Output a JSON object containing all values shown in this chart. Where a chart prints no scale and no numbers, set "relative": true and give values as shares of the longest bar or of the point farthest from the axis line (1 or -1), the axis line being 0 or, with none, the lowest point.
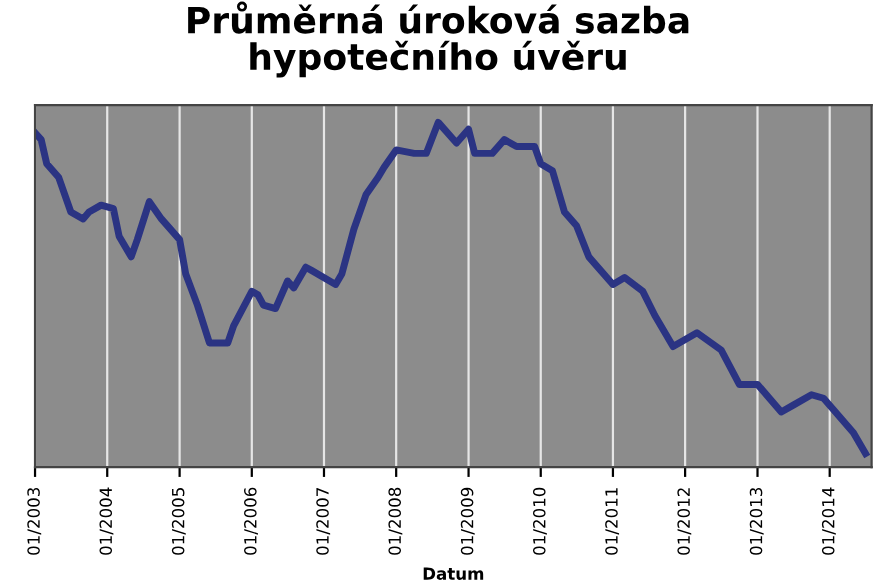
{
  "chart_data": {
    "type": "line",
    "title": "Průměrná úroková sazba\nhypotečního úvěru",
    "xlabel": "Datum",
    "relative": true,
    "grid": "x",
    "legend": false,
    "marker": "none",
    "line_style": "solid",
    "xlim": [
      "2003-01",
      "2014-08"
    ],
    "xticks": [
      {
        "value": "2003-01",
        "label": "01/2003"
      },
      {
        "value": "2004-01",
        "label": "01/2004"
      },
      {
        "value": "2005-01",
        "label": "01/2005"
      },
      {
        "value": "2006-01",
        "label": "01/2006"
      },
      {
        "value": "2007-01",
        "label": "01/2007"
      },
      {
        "value": "2008-01",
        "label": "01/2008"
      },
      {
        "value": "2009-01",
        "label": "01/2009"
      },
      {
        "value": "2010-01",
        "label": "01/2010"
      },
      {
        "value": "2011-01",
        "label": "01/2011"
      },
      {
        "value": "2012-01",
        "label": "01/2012"
      },
      {
        "value": "2013-01",
        "label": "01/2013"
      },
      {
        "value": "2014-01",
        "label": "01/2014"
      }
    ],
    "x": [
      "2003-01",
      "2003-02",
      "2003-03",
      "2003-05",
      "2003-07",
      "2003-09",
      "2003-10",
      "2003-12",
      "2004-02",
      "2004-03",
      "2004-05",
      "2004-06",
      "2004-08",
      "2004-10",
      "2005-01",
      "2005-02",
      "2005-04",
      "2005-06",
      "2005-09",
      "2005-10",
      "2006-01",
      "2006-02",
      "2006-03",
      "2006-05",
      "2006-07",
      "2006-08",
      "2006-10",
      "2006-11",
      "2007-03",
      "2007-04",
      "2007-06",
      "2007-08",
      "2007-10",
      "2007-11",
      "2008-01",
      "2008-04",
      "2008-06",
      "2008-08",
      "2008-11",
      "2009-01",
      "2009-02",
      "2009-05",
      "2009-07",
      "2009-09",
      "2009-12",
      "2010-01",
      "2010-03",
      "2010-05",
      "2010-07",
      "2010-09",
      "2011-01",
      "2011-03",
      "2011-06",
      "2011-08",
      "2011-11",
      "2012-03",
      "2012-07",
      "2012-10",
      "2013-01",
      "2013-05",
      "2013-07",
      "2013-10",
      "2013-12",
      "2014-05",
      "2014-07"
    ],
    "series": [
      {
        "color": "#2b3483",
        "values": [
          0.97,
          0.95,
          0.88,
          0.84,
          0.74,
          0.72,
          0.74,
          0.76,
          0.75,
          0.67,
          0.61,
          0.66,
          0.77,
          0.72,
          0.66,
          0.56,
          0.47,
          0.36,
          0.36,
          0.41,
          0.51,
          0.5,
          0.47,
          0.46,
          0.54,
          0.52,
          0.58,
          0.57,
          0.53,
          0.56,
          0.69,
          0.79,
          0.84,
          0.87,
          0.92,
          0.91,
          0.91,
          1.0,
          0.94,
          0.98,
          0.91,
          0.91,
          0.95,
          0.93,
          0.93,
          0.88,
          0.86,
          0.74,
          0.7,
          0.61,
          0.53,
          0.55,
          0.51,
          0.44,
          0.35,
          0.39,
          0.34,
          0.24,
          0.24,
          0.16,
          0.18,
          0.21,
          0.2,
          0.1,
          0.04
        ]
      }
    ]
  }
}
